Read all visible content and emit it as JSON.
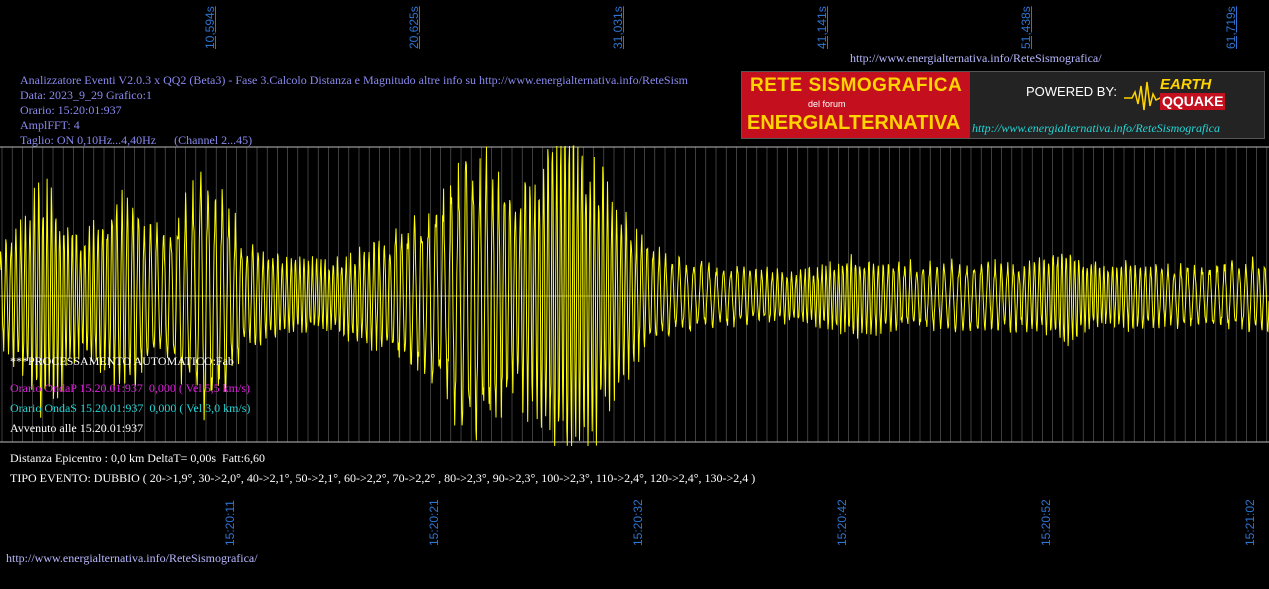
{
  "top_url": "http://www.energialternativa.info/ReteSismografica/",
  "bottom_url": "http://www.energialternativa.info/ReteSismografica/",
  "header": {
    "line1": "Analizzatore Eventi V2.0.3 x QQ2 (Beta3) - Fase 3.Calcolo Distanza e Magnitudo altre info su http://www.energialternativa.info/ReteSism",
    "line2": "Data: 2023_9_29 Grafico:1",
    "line3": "Orario: 15:20:01:937",
    "line4": "AmplFFT: 4",
    "line5": "Taglio: ON 0,10Hz...4,40Hz      (Channel 2...45)"
  },
  "banner": {
    "title1": "RETE SISMOGRAFICA",
    "subtitle": "del forum",
    "title2": "ENERGIALTERNATIVA",
    "powered_by": "POWERED BY:",
    "logo_earth": "EARTH",
    "logo_quake": "QQUAKE",
    "url": "http://www.energialternativa.info/ReteSismografica"
  },
  "processing": {
    "auto": "***PROCESSAMENTO AUTOMATICO:Fab",
    "onda_p": "Orario OndaP 15.20.01:937  0,000 ( Vel 5,5 km/s)",
    "onda_s": "Orario OndaS 15.20.01:937  0,000 ( Vel 3,0 km/s)",
    "avvenuto": "Avvenuto alle 15.20.01:937"
  },
  "results": {
    "distanza": "Distanza Epicentro : 0,0 km DeltaT= 0,00s  Fatt:6,60",
    "tipo": "TIPO EVENTO: DUBBIO ( 20->1,9°, 30->2,0°, 40->2,1°, 50->2,1°, 60->2,2°, 70->2,2° , 80->2,3°, 90->2,3°, 100->2,3°, 110->2,4°, 120->2,4°, 130->2,4 )"
  },
  "colors": {
    "background": "#000000",
    "trace": "#ffff00",
    "grid": "#bcbcbc",
    "axis_text": "#2f74d0",
    "onda_p": "#e020e0",
    "onda_s": "#22d8d8",
    "header_text": "#8a8af0"
  },
  "chart_data": {
    "type": "line",
    "title": "",
    "xlabel": "",
    "ylabel": "",
    "x_top_ticks": [
      "10,594s",
      "20,625s",
      "31,031s",
      "41,141s",
      "51,438s",
      "61,719s"
    ],
    "x_bottom_ticks": [
      "15:20:11",
      "15:20:21",
      "15:20:32",
      "15:20:42",
      "15:20:52",
      "15:21:02"
    ],
    "xlim_seconds": [
      0,
      62
    ],
    "ylim": [
      -1,
      1
    ],
    "grid": true,
    "series": [
      {
        "envelope": [
          [
            0,
            0.3
          ],
          [
            1,
            0.45
          ],
          [
            2,
            0.7
          ],
          [
            3,
            0.55
          ],
          [
            4,
            0.35
          ],
          [
            5,
            0.45
          ],
          [
            6,
            0.65
          ],
          [
            7,
            0.45
          ],
          [
            8,
            0.4
          ],
          [
            9,
            0.55
          ],
          [
            10,
            0.75
          ],
          [
            11,
            0.55
          ],
          [
            12,
            0.35
          ],
          [
            13,
            0.25
          ],
          [
            14,
            0.25
          ],
          [
            15,
            0.22
          ],
          [
            16,
            0.22
          ],
          [
            17,
            0.25
          ],
          [
            18,
            0.3
          ],
          [
            19,
            0.35
          ],
          [
            20,
            0.45
          ],
          [
            21,
            0.5
          ],
          [
            22,
            0.65
          ],
          [
            23,
            0.85
          ],
          [
            24,
            0.8
          ],
          [
            25,
            0.6
          ],
          [
            26,
            0.7
          ],
          [
            27,
            0.95
          ],
          [
            28,
            1.0
          ],
          [
            29,
            0.85
          ],
          [
            30,
            0.6
          ],
          [
            31,
            0.4
          ],
          [
            32,
            0.28
          ],
          [
            33,
            0.22
          ],
          [
            34,
            0.2
          ],
          [
            35,
            0.18
          ],
          [
            36,
            0.17
          ],
          [
            37,
            0.16
          ],
          [
            38,
            0.16
          ],
          [
            39,
            0.16
          ],
          [
            40,
            0.18
          ],
          [
            41,
            0.22
          ],
          [
            42,
            0.25
          ],
          [
            43,
            0.22
          ],
          [
            44,
            0.2
          ],
          [
            45,
            0.2
          ],
          [
            46,
            0.2
          ],
          [
            47,
            0.2
          ],
          [
            48,
            0.2
          ],
          [
            49,
            0.2
          ],
          [
            50,
            0.2
          ],
          [
            51,
            0.22
          ],
          [
            52,
            0.3
          ],
          [
            53,
            0.22
          ],
          [
            54,
            0.18
          ],
          [
            55,
            0.2
          ],
          [
            56,
            0.2
          ],
          [
            57,
            0.18
          ],
          [
            58,
            0.18
          ],
          [
            59,
            0.18
          ],
          [
            60,
            0.2
          ],
          [
            61,
            0.22
          ],
          [
            62,
            0.2
          ]
        ]
      }
    ]
  }
}
